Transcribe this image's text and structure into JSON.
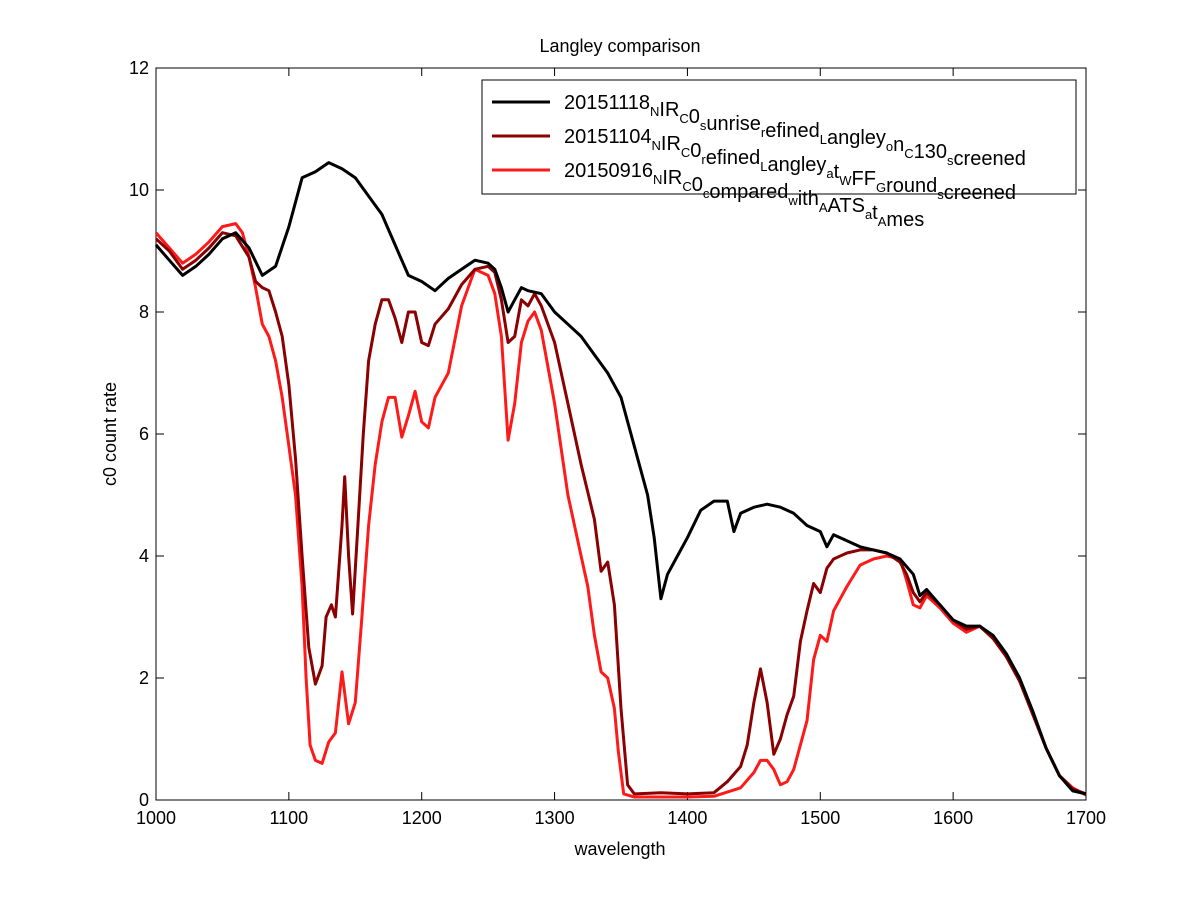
{
  "chart_data": {
    "type": "line",
    "title": "Langley comparison",
    "xlabel": "wavelength",
    "ylabel": "c0 count rate",
    "xlim": [
      1000,
      1700
    ],
    "ylim": [
      0,
      12
    ],
    "xticks": [
      1000,
      1100,
      1200,
      1300,
      1400,
      1500,
      1600,
      1700
    ],
    "yticks": [
      0,
      2,
      4,
      6,
      8,
      10,
      12
    ],
    "grid": false,
    "legend_position": "top-right",
    "series": [
      {
        "name": "20151118_NIR_C0_sunrise_refined_Langley_on_C130_screened",
        "legend_segments": [
          {
            "t": "20151118",
            "s": "N"
          },
          {
            "t": "IR",
            "s": "C"
          },
          {
            "t": "0",
            "s": "s"
          },
          {
            "t": "unrise",
            "s": "r"
          },
          {
            "t": "efined",
            "s": "L"
          },
          {
            "t": "angley",
            "s": "o"
          },
          {
            "t": "n",
            "s": "C"
          },
          {
            "t": "130",
            "s": "s"
          },
          {
            "t": "creened",
            "s": ""
          }
        ],
        "color": "#000000",
        "points": [
          [
            1000,
            9.1
          ],
          [
            1010,
            8.85
          ],
          [
            1020,
            8.6
          ],
          [
            1030,
            8.75
          ],
          [
            1040,
            8.95
          ],
          [
            1050,
            9.2
          ],
          [
            1060,
            9.3
          ],
          [
            1070,
            9.05
          ],
          [
            1080,
            8.6
          ],
          [
            1090,
            8.75
          ],
          [
            1100,
            9.4
          ],
          [
            1110,
            10.2
          ],
          [
            1120,
            10.3
          ],
          [
            1130,
            10.45
          ],
          [
            1140,
            10.35
          ],
          [
            1150,
            10.2
          ],
          [
            1160,
            9.9
          ],
          [
            1170,
            9.6
          ],
          [
            1180,
            9.1
          ],
          [
            1190,
            8.6
          ],
          [
            1200,
            8.5
          ],
          [
            1210,
            8.35
          ],
          [
            1220,
            8.55
          ],
          [
            1230,
            8.7
          ],
          [
            1240,
            8.85
          ],
          [
            1250,
            8.8
          ],
          [
            1255,
            8.7
          ],
          [
            1260,
            8.4
          ],
          [
            1265,
            8.0
          ],
          [
            1270,
            8.2
          ],
          [
            1275,
            8.4
          ],
          [
            1280,
            8.35
          ],
          [
            1290,
            8.3
          ],
          [
            1300,
            8.0
          ],
          [
            1310,
            7.8
          ],
          [
            1320,
            7.6
          ],
          [
            1330,
            7.3
          ],
          [
            1340,
            7.0
          ],
          [
            1350,
            6.6
          ],
          [
            1360,
            5.8
          ],
          [
            1370,
            5.0
          ],
          [
            1375,
            4.3
          ],
          [
            1380,
            3.3
          ],
          [
            1385,
            3.7
          ],
          [
            1390,
            3.9
          ],
          [
            1400,
            4.3
          ],
          [
            1410,
            4.75
          ],
          [
            1420,
            4.9
          ],
          [
            1430,
            4.9
          ],
          [
            1435,
            4.4
          ],
          [
            1440,
            4.7
          ],
          [
            1450,
            4.8
          ],
          [
            1460,
            4.85
          ],
          [
            1470,
            4.8
          ],
          [
            1480,
            4.7
          ],
          [
            1490,
            4.5
          ],
          [
            1500,
            4.4
          ],
          [
            1505,
            4.15
          ],
          [
            1510,
            4.35
          ],
          [
            1520,
            4.25
          ],
          [
            1530,
            4.15
          ],
          [
            1540,
            4.1
          ],
          [
            1550,
            4.05
          ],
          [
            1560,
            3.95
          ],
          [
            1570,
            3.7
          ],
          [
            1575,
            3.35
          ],
          [
            1580,
            3.45
          ],
          [
            1590,
            3.2
          ],
          [
            1600,
            2.95
          ],
          [
            1610,
            2.85
          ],
          [
            1620,
            2.85
          ],
          [
            1630,
            2.7
          ],
          [
            1640,
            2.4
          ],
          [
            1650,
            2.0
          ],
          [
            1660,
            1.45
          ],
          [
            1670,
            0.85
          ],
          [
            1680,
            0.4
          ],
          [
            1690,
            0.15
          ],
          [
            1700,
            0.1
          ]
        ]
      },
      {
        "name": "20151104_NIR_C0_refined_Langley_at_WFF_Ground_screened",
        "legend_segments": [
          {
            "t": "20151104",
            "s": "N"
          },
          {
            "t": "IR",
            "s": "C"
          },
          {
            "t": "0",
            "s": "r"
          },
          {
            "t": "efined",
            "s": "L"
          },
          {
            "t": "angley",
            "s": "a"
          },
          {
            "t": "t",
            "s": "W"
          },
          {
            "t": "FF",
            "s": "G"
          },
          {
            "t": "round",
            "s": "s"
          },
          {
            "t": "creened",
            "s": ""
          }
        ],
        "color": "#8b0000",
        "points": [
          [
            1000,
            9.2
          ],
          [
            1010,
            9.0
          ],
          [
            1020,
            8.7
          ],
          [
            1030,
            8.85
          ],
          [
            1040,
            9.05
          ],
          [
            1050,
            9.3
          ],
          [
            1060,
            9.25
          ],
          [
            1070,
            8.9
          ],
          [
            1075,
            8.5
          ],
          [
            1080,
            8.4
          ],
          [
            1085,
            8.35
          ],
          [
            1090,
            8.0
          ],
          [
            1095,
            7.6
          ],
          [
            1100,
            6.8
          ],
          [
            1105,
            5.6
          ],
          [
            1110,
            4.0
          ],
          [
            1115,
            2.5
          ],
          [
            1120,
            1.9
          ],
          [
            1125,
            2.2
          ],
          [
            1128,
            3.0
          ],
          [
            1132,
            3.2
          ],
          [
            1135,
            3.0
          ],
          [
            1140,
            4.5
          ],
          [
            1142,
            5.3
          ],
          [
            1145,
            4.0
          ],
          [
            1148,
            3.05
          ],
          [
            1152,
            4.5
          ],
          [
            1156,
            6.0
          ],
          [
            1160,
            7.2
          ],
          [
            1165,
            7.8
          ],
          [
            1170,
            8.2
          ],
          [
            1175,
            8.2
          ],
          [
            1180,
            7.9
          ],
          [
            1185,
            7.5
          ],
          [
            1190,
            8.0
          ],
          [
            1195,
            8.0
          ],
          [
            1200,
            7.5
          ],
          [
            1205,
            7.45
          ],
          [
            1210,
            7.8
          ],
          [
            1220,
            8.05
          ],
          [
            1230,
            8.45
          ],
          [
            1240,
            8.7
          ],
          [
            1250,
            8.75
          ],
          [
            1255,
            8.65
          ],
          [
            1260,
            8.2
          ],
          [
            1265,
            7.5
          ],
          [
            1270,
            7.6
          ],
          [
            1275,
            8.2
          ],
          [
            1280,
            8.1
          ],
          [
            1285,
            8.3
          ],
          [
            1290,
            8.1
          ],
          [
            1300,
            7.5
          ],
          [
            1310,
            6.5
          ],
          [
            1320,
            5.5
          ],
          [
            1330,
            4.6
          ],
          [
            1335,
            3.75
          ],
          [
            1340,
            3.9
          ],
          [
            1345,
            3.2
          ],
          [
            1350,
            1.5
          ],
          [
            1355,
            0.25
          ],
          [
            1360,
            0.1
          ],
          [
            1380,
            0.12
          ],
          [
            1400,
            0.1
          ],
          [
            1420,
            0.12
          ],
          [
            1430,
            0.3
          ],
          [
            1440,
            0.55
          ],
          [
            1445,
            0.9
          ],
          [
            1450,
            1.6
          ],
          [
            1455,
            2.15
          ],
          [
            1460,
            1.6
          ],
          [
            1465,
            0.75
          ],
          [
            1470,
            1.0
          ],
          [
            1475,
            1.4
          ],
          [
            1480,
            1.7
          ],
          [
            1485,
            2.6
          ],
          [
            1490,
            3.1
          ],
          [
            1495,
            3.55
          ],
          [
            1500,
            3.4
          ],
          [
            1505,
            3.8
          ],
          [
            1510,
            3.95
          ],
          [
            1520,
            4.05
          ],
          [
            1530,
            4.1
          ],
          [
            1540,
            4.1
          ],
          [
            1550,
            4.05
          ],
          [
            1560,
            3.9
          ],
          [
            1565,
            3.7
          ],
          [
            1570,
            3.4
          ],
          [
            1575,
            3.25
          ],
          [
            1580,
            3.4
          ],
          [
            1590,
            3.2
          ],
          [
            1600,
            2.95
          ],
          [
            1610,
            2.8
          ],
          [
            1620,
            2.85
          ],
          [
            1630,
            2.65
          ],
          [
            1640,
            2.35
          ],
          [
            1650,
            1.95
          ],
          [
            1660,
            1.4
          ],
          [
            1670,
            0.85
          ],
          [
            1680,
            0.4
          ],
          [
            1690,
            0.18
          ],
          [
            1700,
            0.1
          ]
        ]
      },
      {
        "name": "20150916_NIR_C0_compared_with_AATS_at_Ames",
        "legend_segments": [
          {
            "t": "20150916",
            "s": "N"
          },
          {
            "t": "IR",
            "s": "C"
          },
          {
            "t": "0",
            "s": "c"
          },
          {
            "t": "ompared",
            "s": "w"
          },
          {
            "t": "ith",
            "s": "A"
          },
          {
            "t": "ATS",
            "s": "a"
          },
          {
            "t": "t",
            "s": "A"
          },
          {
            "t": "mes",
            "s": ""
          }
        ],
        "color": "#ff1a1a",
        "points": [
          [
            1000,
            9.3
          ],
          [
            1010,
            9.05
          ],
          [
            1020,
            8.8
          ],
          [
            1030,
            8.95
          ],
          [
            1040,
            9.15
          ],
          [
            1050,
            9.4
          ],
          [
            1060,
            9.45
          ],
          [
            1065,
            9.3
          ],
          [
            1070,
            8.9
          ],
          [
            1075,
            8.4
          ],
          [
            1080,
            7.8
          ],
          [
            1085,
            7.6
          ],
          [
            1090,
            7.2
          ],
          [
            1095,
            6.6
          ],
          [
            1100,
            5.8
          ],
          [
            1105,
            5.0
          ],
          [
            1110,
            3.5
          ],
          [
            1113,
            2.0
          ],
          [
            1116,
            0.9
          ],
          [
            1120,
            0.65
          ],
          [
            1125,
            0.6
          ],
          [
            1130,
            0.95
          ],
          [
            1135,
            1.1
          ],
          [
            1140,
            2.1
          ],
          [
            1145,
            1.25
          ],
          [
            1150,
            1.6
          ],
          [
            1155,
            3.0
          ],
          [
            1160,
            4.5
          ],
          [
            1165,
            5.5
          ],
          [
            1170,
            6.2
          ],
          [
            1175,
            6.6
          ],
          [
            1180,
            6.6
          ],
          [
            1185,
            5.95
          ],
          [
            1190,
            6.3
          ],
          [
            1195,
            6.7
          ],
          [
            1200,
            6.2
          ],
          [
            1205,
            6.1
          ],
          [
            1210,
            6.6
          ],
          [
            1220,
            7.0
          ],
          [
            1230,
            8.1
          ],
          [
            1240,
            8.7
          ],
          [
            1250,
            8.6
          ],
          [
            1255,
            8.3
          ],
          [
            1260,
            7.6
          ],
          [
            1265,
            5.9
          ],
          [
            1270,
            6.5
          ],
          [
            1275,
            7.5
          ],
          [
            1280,
            7.85
          ],
          [
            1285,
            8.0
          ],
          [
            1290,
            7.7
          ],
          [
            1300,
            6.5
          ],
          [
            1310,
            5.0
          ],
          [
            1320,
            4.0
          ],
          [
            1325,
            3.5
          ],
          [
            1330,
            2.7
          ],
          [
            1335,
            2.1
          ],
          [
            1340,
            2.0
          ],
          [
            1345,
            1.5
          ],
          [
            1348,
            0.8
          ],
          [
            1352,
            0.1
          ],
          [
            1360,
            0.05
          ],
          [
            1380,
            0.05
          ],
          [
            1400,
            0.05
          ],
          [
            1420,
            0.06
          ],
          [
            1440,
            0.2
          ],
          [
            1450,
            0.45
          ],
          [
            1455,
            0.65
          ],
          [
            1460,
            0.65
          ],
          [
            1465,
            0.5
          ],
          [
            1470,
            0.25
          ],
          [
            1475,
            0.3
          ],
          [
            1480,
            0.5
          ],
          [
            1490,
            1.3
          ],
          [
            1495,
            2.3
          ],
          [
            1500,
            2.7
          ],
          [
            1505,
            2.6
          ],
          [
            1510,
            3.1
          ],
          [
            1520,
            3.5
          ],
          [
            1530,
            3.85
          ],
          [
            1540,
            3.95
          ],
          [
            1550,
            4.0
          ],
          [
            1560,
            3.95
          ],
          [
            1565,
            3.6
          ],
          [
            1570,
            3.2
          ],
          [
            1575,
            3.15
          ],
          [
            1580,
            3.35
          ],
          [
            1590,
            3.15
          ],
          [
            1600,
            2.9
          ],
          [
            1610,
            2.75
          ],
          [
            1620,
            2.85
          ],
          [
            1630,
            2.65
          ],
          [
            1640,
            2.35
          ],
          [
            1650,
            1.95
          ],
          [
            1660,
            1.4
          ],
          [
            1670,
            0.85
          ],
          [
            1680,
            0.4
          ],
          [
            1690,
            0.2
          ],
          [
            1700,
            0.08
          ]
        ]
      }
    ]
  }
}
